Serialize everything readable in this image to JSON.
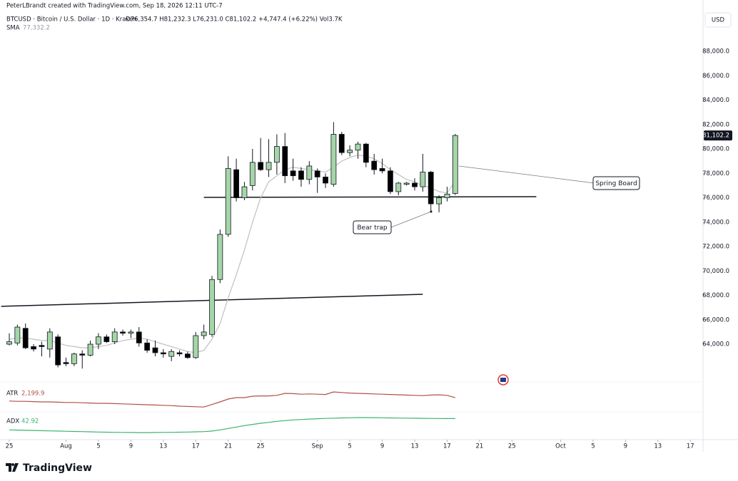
{
  "header": {
    "credit": "PeterLBrandt created with TradingView.com, Sep 18, 2026 12:11 UTC-7",
    "symbol": "BTCUSD · Bitcoin / U.S. Dollar · 1D · Kraken",
    "ohlc": "O76,354.7 H81,232.3 L76,231.0 C81,102.2 +4,747.4 (+6.22%) Vol3.7K",
    "currency": "USD",
    "brand": "TradingView"
  },
  "chart_data": {
    "type": "candlestick",
    "categories": [
      "Jul 25",
      "Jul 26",
      "Jul 27",
      "Jul 28",
      "Jul 29",
      "Jul 30",
      "Jul 31",
      "Aug 1",
      "Aug 2",
      "Aug 3",
      "Aug 4",
      "Aug 5",
      "Aug 6",
      "Aug 7",
      "Aug 8",
      "Aug 9",
      "Aug 10",
      "Aug 11",
      "Aug 12",
      "Aug 13",
      "Aug 14",
      "Aug 15",
      "Aug 16",
      "Aug 17",
      "Aug 18",
      "Aug 19",
      "Aug 20",
      "Aug 21",
      "Aug 22",
      "Aug 23",
      "Aug 24",
      "Aug 25",
      "Aug 26",
      "Aug 27",
      "Aug 28",
      "Aug 29",
      "Aug 30",
      "Aug 31",
      "Sep 1",
      "Sep 2",
      "Sep 3",
      "Sep 4",
      "Sep 5",
      "Sep 6",
      "Sep 7",
      "Sep 8",
      "Sep 9",
      "Sep 10",
      "Sep 11",
      "Sep 12",
      "Sep 13",
      "Sep 14",
      "Sep 15",
      "Sep 16",
      "Sep 17",
      "Sep 18"
    ],
    "open": [
      64000,
      64100,
      65300,
      63800,
      63900,
      63600,
      64600,
      62500,
      62400,
      63200,
      63100,
      64000,
      64600,
      64200,
      65000,
      64900,
      65000,
      64100,
      63700,
      63300,
      63000,
      63300,
      63200,
      62900,
      64700,
      64800,
      69300,
      73000,
      78300,
      76000,
      77000,
      78900,
      78300,
      78900,
      80200,
      78200,
      78200,
      77500,
      78200,
      77700,
      77100,
      81200,
      79700,
      79900,
      80400,
      79000,
      78400,
      78200,
      76500,
      77100,
      77200,
      76900,
      78100,
      75500,
      76000,
      76354.7
    ],
    "high": [
      64900,
      65600,
      65700,
      64000,
      64200,
      65300,
      64800,
      62900,
      63300,
      63500,
      64300,
      64900,
      64800,
      65300,
      65200,
      65200,
      65400,
      64400,
      64300,
      63600,
      63600,
      63500,
      63400,
      65000,
      65600,
      69600,
      73400,
      79400,
      79200,
      77300,
      80000,
      80900,
      80800,
      81200,
      81300,
      79200,
      78500,
      79000,
      78400,
      78000,
      82200,
      81400,
      80300,
      80600,
      80500,
      79600,
      79200,
      78500,
      77300,
      77300,
      77600,
      79600,
      78200,
      76200,
      76900,
      81232.3
    ],
    "low": [
      63900,
      63900,
      63600,
      63400,
      63000,
      62900,
      62100,
      62200,
      62200,
      62000,
      63000,
      63600,
      64100,
      64000,
      64700,
      64500,
      63800,
      63300,
      63000,
      62900,
      62600,
      63000,
      62800,
      62800,
      64400,
      64600,
      69000,
      72800,
      75700,
      75800,
      76600,
      78200,
      77700,
      77900,
      77200,
      77400,
      76900,
      77100,
      76400,
      76800,
      76900,
      79500,
      79400,
      79200,
      78500,
      77900,
      78000,
      76300,
      76200,
      77000,
      76600,
      76500,
      74900,
      74800,
      75700,
      76231.0
    ],
    "close": [
      64200,
      65400,
      63700,
      63600,
      63800,
      65000,
      62300,
      62400,
      63200,
      63100,
      64000,
      64600,
      64200,
      65000,
      64900,
      65000,
      64100,
      63500,
      63300,
      63200,
      63400,
      63200,
      62900,
      64700,
      65000,
      69300,
      73000,
      78400,
      76000,
      76900,
      78900,
      78300,
      78900,
      80200,
      77800,
      77800,
      77500,
      78600,
      77700,
      77200,
      81200,
      79700,
      79900,
      80400,
      78900,
      78300,
      78200,
      76500,
      77200,
      77200,
      76900,
      78100,
      75500,
      76000,
      76300,
      81102.2
    ],
    "up_color": "#a5d6a7",
    "down_color": "#000000",
    "price_label": "81,102.2",
    "ylim": [
      61500,
      90000
    ],
    "yticks": [
      {
        "value": 64000,
        "label": "64,000.0"
      },
      {
        "value": 66000,
        "label": "66,000.0"
      },
      {
        "value": 68000,
        "label": "68,000.0"
      },
      {
        "value": 70000,
        "label": "70,000.0"
      },
      {
        "value": 72000,
        "label": "72,000.0"
      },
      {
        "value": 74000,
        "label": "74,000.0"
      },
      {
        "value": 76000,
        "label": "76,000.0"
      },
      {
        "value": 78000,
        "label": "78,000.0"
      },
      {
        "value": 80000,
        "label": "80,000.0"
      },
      {
        "value": 82000,
        "label": "82,000.0"
      },
      {
        "value": 84000,
        "label": "84,000.0"
      },
      {
        "value": 86000,
        "label": "86,000.0"
      },
      {
        "value": 88000,
        "label": "88,000.0"
      }
    ],
    "xticks": [
      {
        "value": "Jul 25",
        "label": "25"
      },
      {
        "value": "Aug 1",
        "label": "Aug"
      },
      {
        "value": "Aug 5",
        "label": "5"
      },
      {
        "value": "Aug 9",
        "label": "9"
      },
      {
        "value": "Aug 13",
        "label": "13"
      },
      {
        "value": "Aug 17",
        "label": "17"
      },
      {
        "value": "Aug 21",
        "label": "21"
      },
      {
        "value": "Aug 25",
        "label": "25"
      },
      {
        "value": "Sep 1",
        "label": "Sep"
      },
      {
        "value": "Sep 5",
        "label": "5"
      },
      {
        "value": "Sep 9",
        "label": "9"
      },
      {
        "value": "Sep 13",
        "label": "13"
      },
      {
        "value": "Sep 17",
        "label": "17"
      },
      {
        "value": "Sep 21",
        "label": "21"
      },
      {
        "value": "Sep 25",
        "label": "25"
      },
      {
        "value": "Oct 1",
        "label": "Oct"
      },
      {
        "value": "Oct 5",
        "label": "5"
      },
      {
        "value": "Oct 9",
        "label": "9"
      },
      {
        "value": "Oct 13",
        "label": "13"
      },
      {
        "value": "Oct 17",
        "label": "17"
      }
    ],
    "sma": {
      "name": "SMA",
      "value_label": "77,332.2",
      "color": "#c0c0c0",
      "values": [
        64400,
        64500,
        64500,
        64400,
        64300,
        64300,
        64100,
        63900,
        63800,
        63700,
        63700,
        63800,
        63900,
        64100,
        64300,
        64400,
        64500,
        64400,
        64200,
        64000,
        63800,
        63600,
        63400,
        63300,
        63500,
        64400,
        65700,
        67800,
        69700,
        71700,
        74000,
        76000,
        77300,
        77800,
        78300,
        78500,
        78400,
        78300,
        78200,
        78100,
        78500,
        79000,
        79300,
        79500,
        79400,
        79200,
        78800,
        78300,
        77900,
        77500,
        77300,
        77000,
        76800,
        76500,
        76400,
        77332.2
      ]
    },
    "atr": {
      "name": "ATR",
      "value_label": "2,199.9",
      "color": "#b2504a",
      "ylim": [
        1600,
        2700
      ],
      "values": [
        2080,
        2070,
        2070,
        2060,
        2050,
        2050,
        2040,
        2030,
        2030,
        2020,
        2010,
        2000,
        2000,
        1990,
        1980,
        1970,
        1960,
        1950,
        1940,
        1930,
        1920,
        1900,
        1890,
        1880,
        1870,
        1960,
        2050,
        2150,
        2200,
        2200,
        2250,
        2260,
        2260,
        2280,
        2350,
        2340,
        2320,
        2330,
        2320,
        2310,
        2400,
        2380,
        2360,
        2350,
        2340,
        2330,
        2320,
        2310,
        2300,
        2290,
        2280,
        2270,
        2290,
        2300,
        2280,
        2199.9
      ]
    },
    "adx": {
      "name": "ADX",
      "value_label": "42.92",
      "color": "#3cb371",
      "ylim": [
        20,
        50
      ],
      "values": [
        31,
        30.8,
        30.6,
        30.4,
        30.2,
        30,
        29.8,
        29.6,
        29.4,
        29.2,
        29,
        28.8,
        28.6,
        28.5,
        28.4,
        28.3,
        28.2,
        28.2,
        28.3,
        28.4,
        28.5,
        28.6,
        28.8,
        29,
        29.2,
        29.8,
        31,
        32.5,
        34,
        35.5,
        36.8,
        38,
        39,
        40,
        40.8,
        41.5,
        42,
        42.4,
        42.8,
        43.1,
        43.4,
        43.6,
        43.8,
        44,
        44,
        43.9,
        43.8,
        43.6,
        43.5,
        43.4,
        43.3,
        43.2,
        43.1,
        43,
        42.95,
        42.92
      ]
    },
    "trendlines": [
      {
        "x": [
          "Aug 18",
          "Sep 28"
        ],
        "y": [
          76030,
          76090
        ]
      },
      {
        "x": [
          "Jul 24",
          "Sep 14"
        ],
        "y": [
          67100,
          68090
        ]
      }
    ],
    "annotations": [
      {
        "text": "Spring Board"
      },
      {
        "text": "Bear trap"
      }
    ]
  }
}
